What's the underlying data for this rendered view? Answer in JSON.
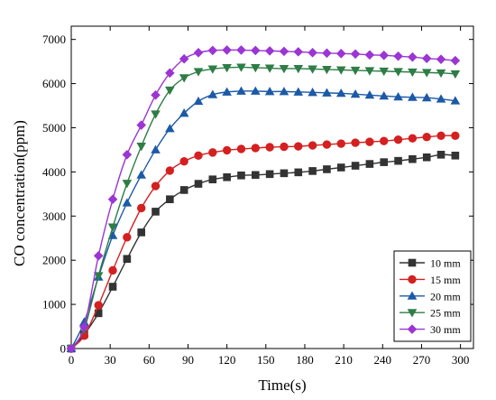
{
  "chart_data": {
    "type": "line",
    "xlabel": "Time(s)",
    "ylabel": "CO concentration(ppm)",
    "xlim": [
      0,
      310
    ],
    "ylim": [
      0,
      7300
    ],
    "xticks": [
      0,
      30,
      60,
      90,
      120,
      150,
      180,
      210,
      240,
      270,
      300
    ],
    "yticks": [
      0,
      1000,
      2000,
      3000,
      4000,
      5000,
      6000,
      7000
    ],
    "legend_position": "bottom-right",
    "x": [
      0,
      10,
      21,
      32,
      43,
      54,
      65,
      76,
      87,
      98,
      109,
      120,
      131,
      142,
      153,
      164,
      175,
      186,
      197,
      208,
      219,
      230,
      241,
      252,
      263,
      274,
      285,
      296
    ],
    "series": [
      {
        "name": "10 mm",
        "color": "#333333",
        "marker": "square",
        "values": [
          0,
          320,
          800,
          1400,
          2030,
          2630,
          3100,
          3380,
          3590,
          3730,
          3830,
          3880,
          3920,
          3930,
          3950,
          3970,
          3990,
          4020,
          4060,
          4100,
          4140,
          4180,
          4220,
          4250,
          4290,
          4330,
          4390,
          4370
        ]
      },
      {
        "name": "15 mm",
        "color": "#d42020",
        "marker": "circle",
        "values": [
          0,
          290,
          980,
          1770,
          2520,
          3180,
          3680,
          4030,
          4240,
          4370,
          4440,
          4490,
          4520,
          4540,
          4560,
          4570,
          4580,
          4600,
          4620,
          4640,
          4660,
          4680,
          4700,
          4730,
          4760,
          4790,
          4820,
          4820
        ]
      },
      {
        "name": "20 mm",
        "color": "#1c5aa6",
        "marker": "triangle-up",
        "values": [
          0,
          600,
          1620,
          2560,
          3300,
          3930,
          4500,
          4980,
          5330,
          5600,
          5750,
          5810,
          5830,
          5830,
          5820,
          5820,
          5810,
          5800,
          5790,
          5780,
          5760,
          5740,
          5720,
          5700,
          5690,
          5680,
          5650,
          5610
        ]
      },
      {
        "name": "25 mm",
        "color": "#2e7d46",
        "marker": "triangle-down",
        "values": [
          0,
          440,
          1650,
          2750,
          3740,
          4580,
          5310,
          5850,
          6130,
          6270,
          6330,
          6360,
          6370,
          6360,
          6350,
          6340,
          6340,
          6330,
          6320,
          6310,
          6300,
          6290,
          6280,
          6270,
          6260,
          6250,
          6240,
          6220
        ]
      },
      {
        "name": "30 mm",
        "color": "#9b35d3",
        "marker": "diamond",
        "values": [
          0,
          490,
          2100,
          3380,
          4390,
          5060,
          5740,
          6240,
          6560,
          6700,
          6750,
          6760,
          6760,
          6750,
          6740,
          6730,
          6720,
          6700,
          6690,
          6680,
          6670,
          6650,
          6640,
          6620,
          6600,
          6570,
          6550,
          6520
        ]
      }
    ]
  }
}
